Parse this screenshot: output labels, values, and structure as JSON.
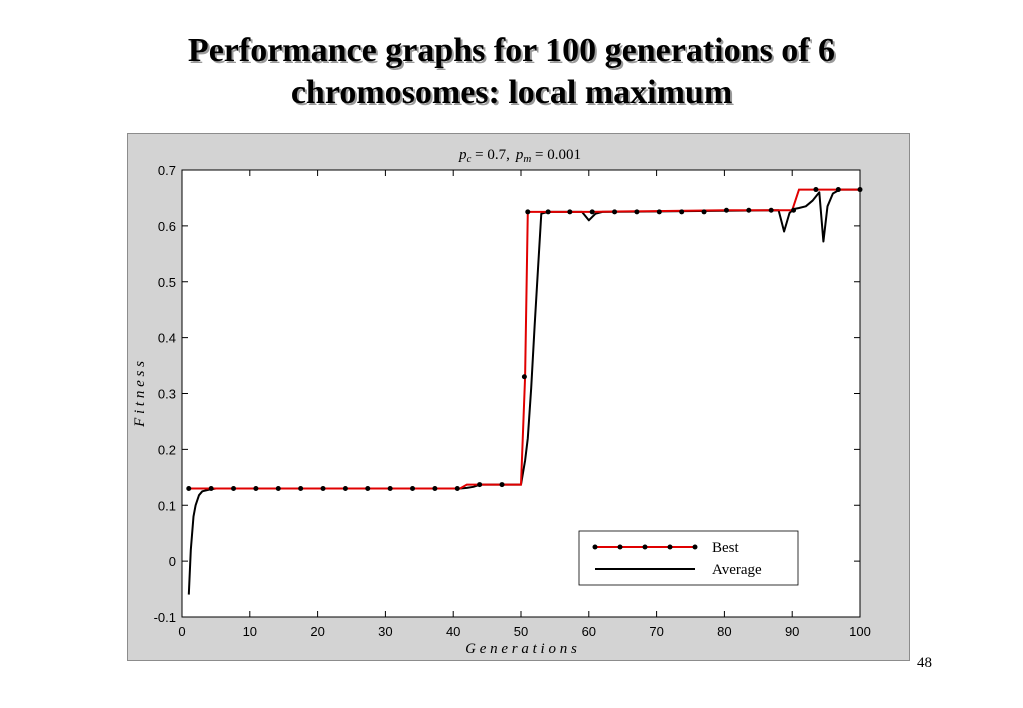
{
  "slide": {
    "title_line1": "Performance graphs for 100 generations of 6",
    "title_line2": "chromosomes: local maximum",
    "page_number": "48"
  },
  "colors": {
    "best": "#e00000",
    "average": "#000000",
    "frame_background": "#d3d3d3",
    "plot_background": "#ffffff"
  },
  "chart_data": {
    "type": "line",
    "title": "p_c = 0.7, p_m = 0.001",
    "title_parts": {
      "pc_symbol": "p",
      "pc_sub": "c",
      "pc_value": " = 0.7,",
      "pm_symbol": "p",
      "pm_sub": "m",
      "pm_value": " = 0.001"
    },
    "xlabel": "G e n e r a t i o n s",
    "ylabel": "F i t n e s s",
    "xlim": [
      0,
      100
    ],
    "ylim": [
      -0.1,
      0.7
    ],
    "xticks": [
      0,
      10,
      20,
      30,
      40,
      50,
      60,
      70,
      80,
      90,
      100
    ],
    "yticks": [
      -0.1,
      0,
      0.1,
      0.2,
      0.3,
      0.4,
      0.5,
      0.6,
      0.7
    ],
    "xtick_labels": [
      "0",
      "10",
      "20",
      "30",
      "40",
      "50",
      "60",
      "70",
      "80",
      "90",
      "100"
    ],
    "ytick_labels": [
      "-0.1",
      "0",
      "0.1",
      "0.2",
      "0.3",
      "0.4",
      "0.5",
      "0.6",
      "0.7"
    ],
    "grid": false,
    "legend_position": "bottom-right",
    "series": [
      {
        "name": "Best",
        "style": "line-with-dots",
        "x": [
          1,
          4,
          41,
          42,
          44,
          50,
          50.6,
          51,
          52,
          60,
          80,
          90,
          91,
          100
        ],
        "y": [
          0.13,
          0.13,
          0.13,
          0.137,
          0.137,
          0.137,
          0.33,
          0.625,
          0.625,
          0.625,
          0.628,
          0.628,
          0.665,
          0.665
        ],
        "marker_x": [
          1,
          4.3,
          7.6,
          10.9,
          14.2,
          17.5,
          20.8,
          24.1,
          27.4,
          30.7,
          34,
          37.3,
          40.6,
          43.9,
          47.2,
          50.5,
          51,
          54,
          57.2,
          60.5,
          63.8,
          67.1,
          70.4,
          73.7,
          77,
          80.3,
          83.6,
          86.9,
          90.2,
          93.5,
          96.8,
          100
        ],
        "marker_y": [
          0.13,
          0.13,
          0.13,
          0.13,
          0.13,
          0.13,
          0.13,
          0.13,
          0.13,
          0.13,
          0.13,
          0.13,
          0.13,
          0.137,
          0.137,
          0.33,
          0.625,
          0.625,
          0.625,
          0.625,
          0.625,
          0.625,
          0.625,
          0.625,
          0.625,
          0.628,
          0.628,
          0.628,
          0.628,
          0.665,
          0.665,
          0.665
        ]
      },
      {
        "name": "Average",
        "style": "line",
        "x": [
          1,
          1.3,
          1.7,
          2,
          2.5,
          3,
          4,
          5,
          40,
          41,
          42,
          43,
          44,
          48,
          50,
          50.6,
          51,
          51.5,
          52,
          52.5,
          53,
          54,
          59,
          60,
          61,
          62,
          88,
          88.8,
          89.6,
          90.2,
          91,
          92,
          93,
          94,
          94.6,
          95.2,
          96,
          97,
          100
        ],
        "y": [
          -0.06,
          0.02,
          0.08,
          0.1,
          0.118,
          0.125,
          0.128,
          0.13,
          0.13,
          0.13,
          0.131,
          0.133,
          0.137,
          0.137,
          0.137,
          0.18,
          0.22,
          0.31,
          0.42,
          0.52,
          0.622,
          0.625,
          0.625,
          0.61,
          0.622,
          0.625,
          0.628,
          0.59,
          0.623,
          0.63,
          0.632,
          0.635,
          0.645,
          0.66,
          0.572,
          0.635,
          0.658,
          0.665,
          0.665
        ]
      }
    ]
  }
}
